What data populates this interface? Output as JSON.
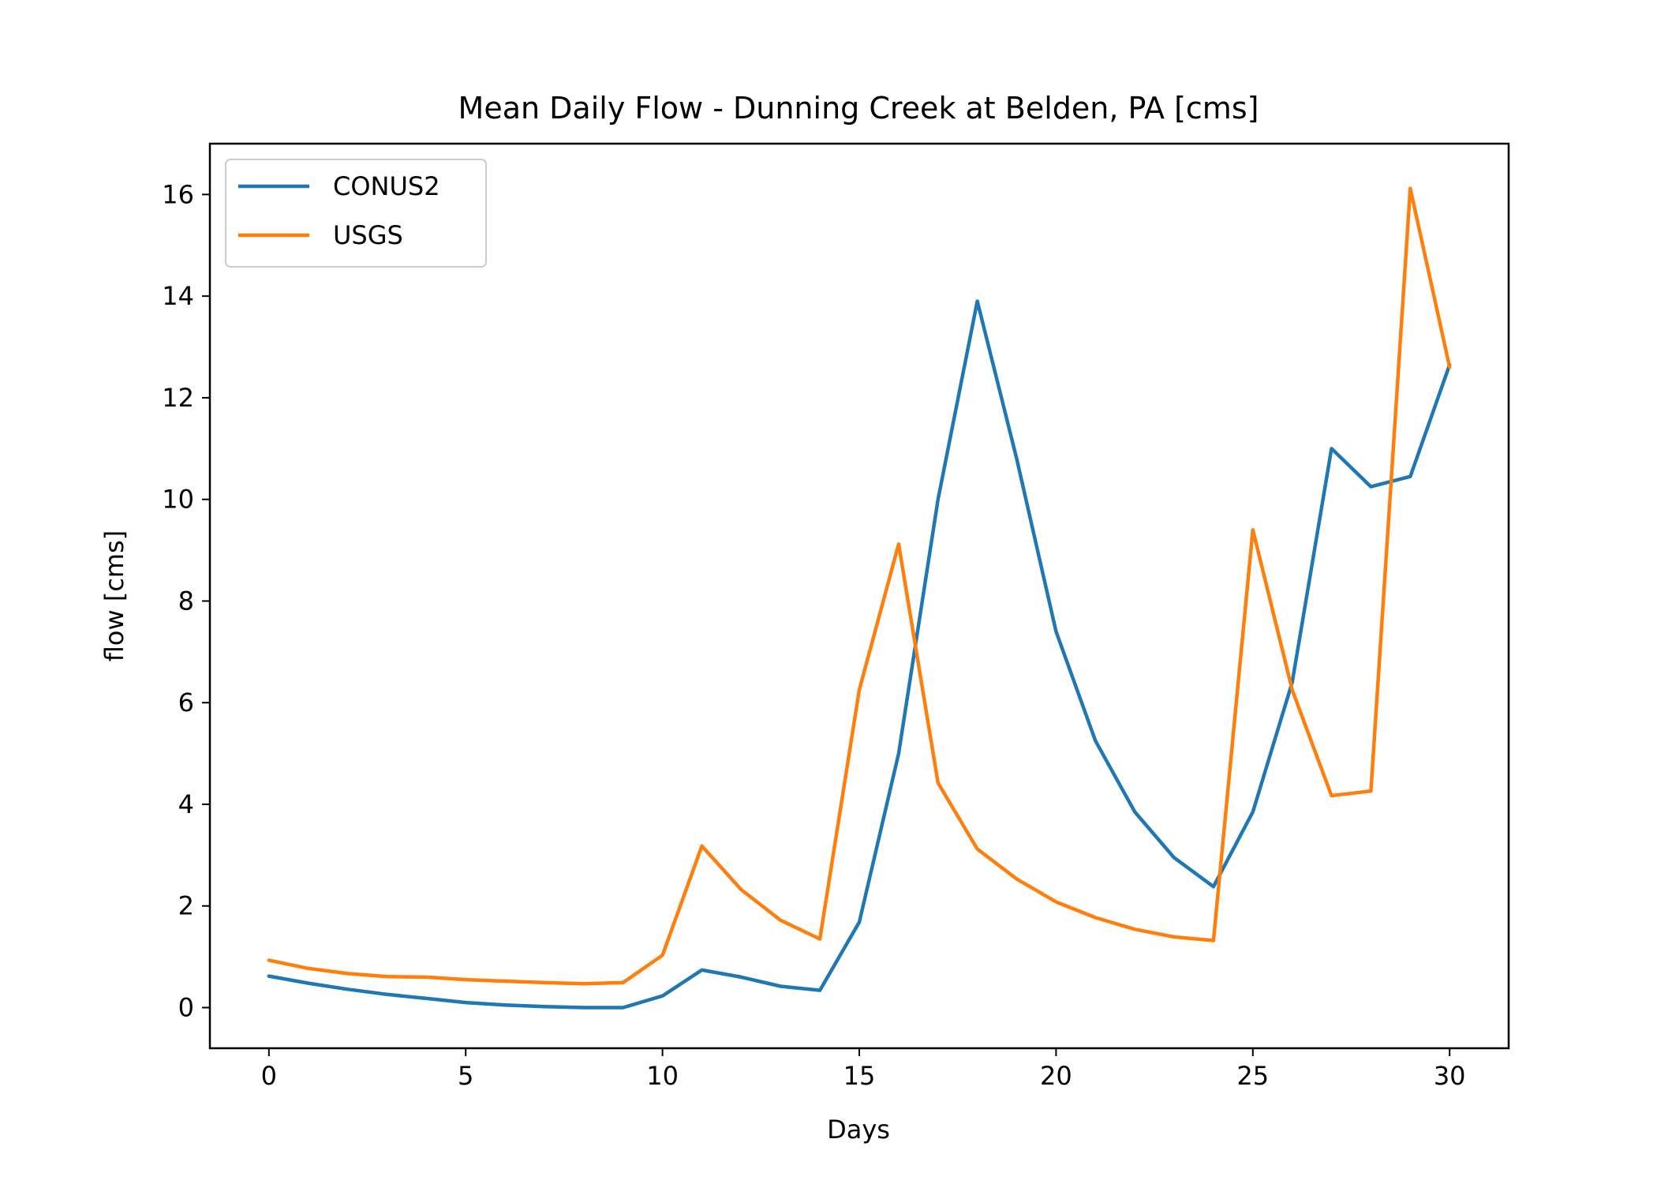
{
  "chart_data": {
    "type": "line",
    "title": "Mean Daily Flow - Dunning Creek at Belden, PA [cms]",
    "xlabel": "Days",
    "ylabel": "flow [cms]",
    "xlim": [
      -1.5,
      31.5
    ],
    "ylim": [
      -0.8,
      17.0
    ],
    "xticks": [
      0,
      5,
      10,
      15,
      20,
      25,
      30
    ],
    "yticks": [
      0,
      2,
      4,
      6,
      8,
      10,
      12,
      14,
      16
    ],
    "grid": false,
    "legend_position": "top-left",
    "x": [
      0,
      1,
      2,
      3,
      4,
      5,
      6,
      7,
      8,
      9,
      10,
      11,
      12,
      13,
      14,
      15,
      16,
      17,
      18,
      19,
      20,
      21,
      22,
      23,
      24,
      25,
      26,
      27,
      28,
      29,
      30
    ],
    "series": [
      {
        "name": "CONUS2",
        "color": "#1f77b4",
        "values": [
          0.62,
          0.48,
          0.36,
          0.26,
          0.18,
          0.1,
          0.05,
          0.02,
          0.0,
          0.0,
          0.23,
          0.74,
          0.6,
          0.42,
          0.34,
          1.68,
          5.0,
          10.0,
          13.9,
          10.8,
          7.4,
          5.25,
          3.85,
          2.95,
          2.38,
          3.85,
          6.4,
          11.0,
          10.25,
          10.45,
          12.65
        ]
      },
      {
        "name": "USGS",
        "color": "#ff7f0e",
        "values": [
          0.93,
          0.77,
          0.67,
          0.61,
          0.6,
          0.55,
          0.52,
          0.49,
          0.47,
          0.49,
          1.03,
          3.18,
          2.32,
          1.72,
          1.35,
          6.25,
          9.12,
          4.42,
          3.12,
          2.53,
          2.08,
          1.77,
          1.54,
          1.39,
          1.32,
          9.4,
          6.25,
          4.17,
          4.26,
          16.12,
          12.6
        ]
      }
    ]
  }
}
